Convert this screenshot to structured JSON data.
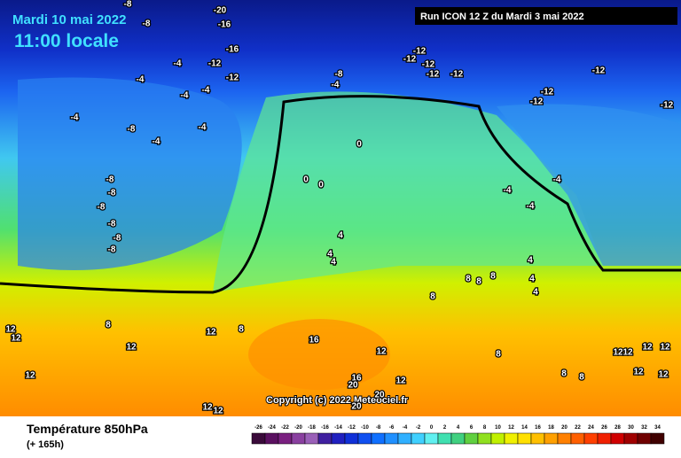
{
  "header": {
    "date": "Mardi 10 mai 2022",
    "time": "11:00 locale",
    "run": "Run ICON 12 Z du Mardi 3 mai 2022"
  },
  "map": {
    "copyright": "Copyright (c) 2022 Meteociel.fr",
    "contour_labels": [
      -20,
      -16,
      -16,
      -12,
      -12,
      -8,
      -8,
      -4,
      -4,
      -4,
      -4,
      -8,
      -4,
      -12,
      -12,
      -12,
      -12,
      -12,
      -12,
      -12,
      -12,
      -12,
      -4,
      -8,
      -4,
      -4,
      -8,
      -8,
      -8,
      -8,
      -8,
      -8,
      0,
      0,
      0,
      -4,
      -4,
      -4,
      4,
      4,
      4,
      4,
      4,
      4,
      8,
      8,
      8,
      8,
      8,
      8,
      12,
      12,
      12,
      12,
      12,
      16,
      12,
      16,
      20,
      12,
      20,
      12,
      12,
      20,
      8,
      8,
      8,
      12,
      12,
      12,
      12,
      12,
      12
    ]
  },
  "legend": {
    "title": "Température 850hPa",
    "lead": "(+ 165h)",
    "ticks": [
      -26,
      -24,
      -22,
      -20,
      -18,
      -16,
      -14,
      -12,
      -10,
      -8,
      -6,
      -4,
      -2,
      0,
      2,
      4,
      6,
      8,
      10,
      12,
      14,
      16,
      18,
      20,
      22,
      24,
      26,
      28,
      30,
      32,
      34
    ],
    "colors": [
      "#3a0a3a",
      "#5a1060",
      "#7a2080",
      "#8a40a0",
      "#9a60b8",
      "#4020a0",
      "#2020c0",
      "#1030d8",
      "#1050f0",
      "#1070ff",
      "#2090ff",
      "#30b0ff",
      "#40d0ff",
      "#60f0f0",
      "#40e0b0",
      "#40d080",
      "#60d040",
      "#90e020",
      "#c0f000",
      "#f0f000",
      "#ffe000",
      "#ffc000",
      "#ffa000",
      "#ff8000",
      "#ff6000",
      "#ff4000",
      "#f02000",
      "#d00000",
      "#a00000",
      "#700000",
      "#400000"
    ]
  }
}
